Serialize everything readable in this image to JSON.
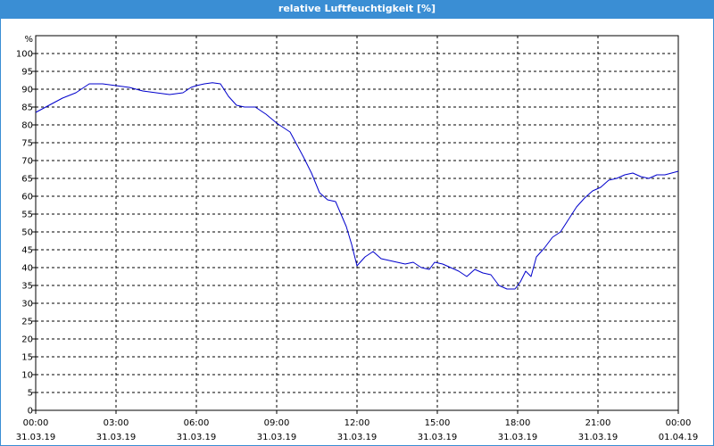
{
  "window": {
    "title": "relative Luftfeuchtigkeit [%]"
  },
  "colors": {
    "titlebar": "#3a8ed4",
    "series_line": "#0000cc",
    "grid": "#000000",
    "background": "#ffffff"
  },
  "chart_data": {
    "type": "line",
    "title": "relative Luftfeuchtigkeit [%]",
    "ylabel": "%",
    "xlabel": "",
    "ylim": [
      0,
      105
    ],
    "xlim": [
      0,
      24
    ],
    "y_ticks": [
      0,
      5,
      10,
      15,
      20,
      25,
      30,
      35,
      40,
      45,
      50,
      55,
      60,
      65,
      70,
      75,
      80,
      85,
      90,
      95,
      100
    ],
    "x_ticks": [
      {
        "time": "00:00",
        "date": "31.03.19"
      },
      {
        "time": "03:00",
        "date": "31.03.19"
      },
      {
        "time": "06:00",
        "date": "31.03.19"
      },
      {
        "time": "09:00",
        "date": "31.03.19"
      },
      {
        "time": "12:00",
        "date": "31.03.19"
      },
      {
        "time": "15:00",
        "date": "31.03.19"
      },
      {
        "time": "18:00",
        "date": "31.03.19"
      },
      {
        "time": "21:00",
        "date": "31.03.19"
      },
      {
        "time": "00:00",
        "date": "01.04.19"
      }
    ],
    "grid": true,
    "legend": "none",
    "series": [
      {
        "x": [
          0.0,
          0.5,
          1.0,
          1.5,
          2.0,
          2.5,
          3.0,
          3.5,
          4.0,
          4.5,
          5.0,
          5.5,
          5.8,
          6.0,
          6.3,
          6.6,
          6.9,
          7.2,
          7.5,
          7.8,
          8.2,
          8.6,
          9.0,
          9.5,
          10.0,
          10.3,
          10.6,
          10.9,
          11.2,
          11.4,
          11.6,
          11.8,
          12.0,
          12.3,
          12.6,
          12.9,
          13.2,
          13.5,
          13.8,
          14.1,
          14.4,
          14.7,
          14.9,
          15.2,
          15.5,
          15.8,
          16.1,
          16.4,
          16.7,
          17.0,
          17.3,
          17.6,
          17.9,
          18.1,
          18.3,
          18.5,
          18.7,
          19.0,
          19.3,
          19.6,
          19.9,
          20.2,
          20.5,
          20.8,
          21.1,
          21.4,
          21.7,
          22.0,
          22.3,
          22.6,
          22.9,
          23.2,
          23.5,
          24.0
        ],
        "values": [
          83.5,
          85.5,
          87.5,
          89.0,
          91.5,
          91.5,
          91.0,
          90.5,
          89.5,
          89.0,
          88.5,
          89.0,
          90.5,
          91.0,
          91.5,
          91.8,
          91.5,
          88.0,
          85.5,
          85.0,
          85.0,
          83.0,
          80.5,
          78.0,
          71.0,
          66.5,
          61.0,
          59.0,
          58.5,
          55.0,
          51.5,
          46.5,
          40.5,
          43.0,
          44.5,
          42.5,
          42.0,
          41.5,
          41.0,
          41.5,
          40.0,
          39.5,
          41.5,
          41.0,
          40.0,
          39.0,
          37.5,
          39.5,
          38.5,
          38.0,
          35.0,
          34.0,
          34.0,
          36.0,
          39.0,
          37.5,
          43.0,
          45.5,
          48.5,
          50.0,
          53.5,
          57.0,
          59.5,
          61.5,
          62.5,
          64.5,
          65.0,
          66.0,
          66.5,
          65.5,
          65.0,
          66.0,
          66.0,
          67.0
        ]
      }
    ]
  }
}
